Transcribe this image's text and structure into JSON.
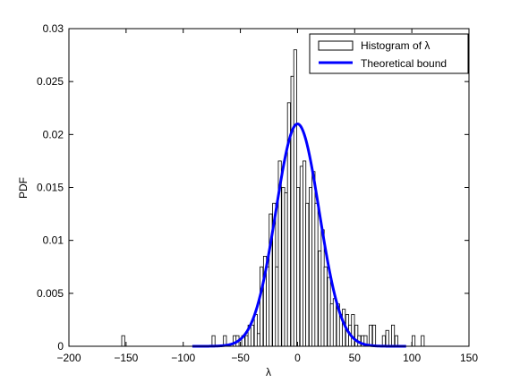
{
  "chart_data": {
    "type": "bar",
    "xlabel": "λ",
    "ylabel": "PDF",
    "xlim": [
      -200,
      150
    ],
    "ylim": [
      0,
      0.03
    ],
    "xticks": [
      -200,
      -150,
      -100,
      -50,
      0,
      50,
      100,
      150
    ],
    "xtick_labels": [
      "−200",
      "−150",
      "−100",
      "−50",
      "0",
      "50",
      "100",
      "150"
    ],
    "yticks": [
      0,
      0.005,
      0.01,
      0.015,
      0.02,
      0.025,
      0.03
    ],
    "ytick_labels": [
      "0",
      "0.005",
      "0.01",
      "0.015",
      "0.02",
      "0.025",
      "0.03"
    ],
    "grid": false,
    "legend_position": "top-right",
    "histogram": {
      "name": "Histogram of λ",
      "bin_width": 2.6,
      "bins": [
        {
          "x": -152.5,
          "y": 0.001
        },
        {
          "x": -73.5,
          "y": 0.001
        },
        {
          "x": -63.5,
          "y": 0.001
        },
        {
          "x": -55.0,
          "y": 0.001
        },
        {
          "x": -52.5,
          "y": 0.001
        },
        {
          "x": -47.5,
          "y": 0.001
        },
        {
          "x": -44.5,
          "y": 0.001
        },
        {
          "x": -42.0,
          "y": 0.002
        },
        {
          "x": -39.5,
          "y": 0.002
        },
        {
          "x": -36.5,
          "y": 0.003
        },
        {
          "x": -34.0,
          "y": 0.0012
        },
        {
          "x": -31.5,
          "y": 0.0075
        },
        {
          "x": -28.5,
          "y": 0.0085
        },
        {
          "x": -26.0,
          "y": 0.0075
        },
        {
          "x": -23.5,
          "y": 0.0125
        },
        {
          "x": -20.5,
          "y": 0.0135
        },
        {
          "x": -18.0,
          "y": 0.0075
        },
        {
          "x": -15.5,
          "y": 0.0175
        },
        {
          "x": -12.5,
          "y": 0.015
        },
        {
          "x": -10.0,
          "y": 0.0145
        },
        {
          "x": -7.5,
          "y": 0.023
        },
        {
          "x": -4.5,
          "y": 0.0255
        },
        {
          "x": -2.0,
          "y": 0.028
        },
        {
          "x": 0.5,
          "y": 0.015
        },
        {
          "x": 3.5,
          "y": 0.017
        },
        {
          "x": 6.0,
          "y": 0.0175
        },
        {
          "x": 8.5,
          "y": 0.0135
        },
        {
          "x": 11.5,
          "y": 0.015
        },
        {
          "x": 14.0,
          "y": 0.0165
        },
        {
          "x": 16.5,
          "y": 0.0135
        },
        {
          "x": 19.5,
          "y": 0.009
        },
        {
          "x": 22.0,
          "y": 0.011
        },
        {
          "x": 24.5,
          "y": 0.0075
        },
        {
          "x": 27.5,
          "y": 0.0065
        },
        {
          "x": 30.0,
          "y": 0.004
        },
        {
          "x": 32.5,
          "y": 0.0045
        },
        {
          "x": 35.5,
          "y": 0.004
        },
        {
          "x": 38.0,
          "y": 0.003
        },
        {
          "x": 40.5,
          "y": 0.0035
        },
        {
          "x": 43.5,
          "y": 0.003
        },
        {
          "x": 46.0,
          "y": 0.002
        },
        {
          "x": 48.5,
          "y": 0.003
        },
        {
          "x": 51.5,
          "y": 0.002
        },
        {
          "x": 54.0,
          "y": 0.001
        },
        {
          "x": 57.0,
          "y": 0.001
        },
        {
          "x": 59.5,
          "y": 0.001
        },
        {
          "x": 64.0,
          "y": 0.002
        },
        {
          "x": 67.0,
          "y": 0.002
        },
        {
          "x": 75.5,
          "y": 0.001
        },
        {
          "x": 78.5,
          "y": 0.0015
        },
        {
          "x": 83.5,
          "y": 0.002
        },
        {
          "x": 86.5,
          "y": 0.001
        },
        {
          "x": 101.5,
          "y": 0.001
        },
        {
          "x": 109.5,
          "y": 0.001
        }
      ]
    },
    "curve": {
      "name": "Theoretical bound",
      "color": "#0000ff",
      "mean": 0,
      "std": 19,
      "x_range": [
        -92,
        95
      ]
    }
  }
}
